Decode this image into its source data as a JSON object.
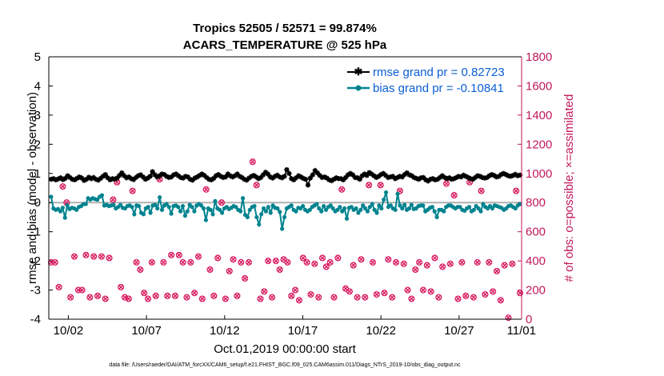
{
  "chart_data": {
    "type": "line",
    "title": [
      "Tropics 52505 / 52571 = 99.874%",
      "ACARS_TEMPERATURE @ 525 hPa"
    ],
    "xlabel": "Oct.01,2019 00:00:00 start",
    "ylabel_left": "rmse and bias (model - observation)",
    "ylabel_right": "# of obs: o=possible; ×=assimilated",
    "footnote": "data file: /Users/raeder/DAI/ATM_forcXX/CAM6_setup/f.e21.FHIST_BGC.f09_025.CAM6assim.011/Diags_NTrS_2019-10/obs_diag_output.nc",
    "xlim": [
      0.75,
      31.0
    ],
    "ylim_left": [
      -4,
      5
    ],
    "ylim_right": [
      0,
      1800
    ],
    "x_ticks": [
      {
        "v": 2,
        "label": "10/02"
      },
      {
        "v": 7,
        "label": "10/07"
      },
      {
        "v": 12,
        "label": "10/12"
      },
      {
        "v": 17,
        "label": "10/17"
      },
      {
        "v": 22,
        "label": "10/22"
      },
      {
        "v": 27,
        "label": "10/27"
      },
      {
        "v": 31,
        "label": "11/01"
      }
    ],
    "y_ticks_left": [
      "-4",
      "-3",
      "-2",
      "-1",
      "0",
      "1",
      "2",
      "3",
      "4",
      "5"
    ],
    "y_ticks_right": [
      "0",
      "200",
      "400",
      "600",
      "800",
      "1000",
      "1200",
      "1400",
      "1600",
      "1800"
    ],
    "legend": {
      "position": "top-right",
      "entries": [
        "rmse grand pr = 0.82723",
        "bias grand pr = -0.10841"
      ]
    },
    "colors": {
      "rmse": "#000000",
      "bias": "#00838f",
      "obs": "#d81b60",
      "zero_line": "#b0b0b0",
      "right_axis": "#c2185b"
    },
    "series": [
      {
        "name": "rmse",
        "axis": "left",
        "values": [
          0.8,
          0.82,
          0.78,
          0.81,
          0.85,
          0.79,
          0.83,
          0.92,
          0.86,
          0.8,
          0.78,
          0.83,
          0.88,
          0.84,
          0.76,
          0.8,
          0.87,
          0.82,
          0.86,
          0.8,
          0.77,
          0.83,
          0.9,
          0.96,
          0.85,
          0.78,
          0.82,
          0.8,
          0.84,
          0.93,
          1.02,
          0.92,
          0.85,
          0.88,
          0.82,
          0.79,
          0.86,
          0.92,
          0.95,
          0.88,
          0.8,
          0.84,
          0.9,
          1.06,
          0.95,
          0.88,
          0.92,
          0.98,
          0.96,
          0.9,
          0.86,
          0.88,
          0.95,
          0.98,
          0.92,
          0.86,
          0.84,
          0.9,
          0.88,
          0.8,
          0.77,
          0.84,
          0.88,
          0.93,
          0.98,
          0.93,
          0.86,
          0.8,
          0.78,
          0.83,
          0.92,
          0.96,
          0.9,
          0.86,
          0.88,
          0.98,
          0.92,
          0.88,
          0.92,
          0.98,
          0.9,
          0.86,
          0.8,
          0.77,
          0.84,
          0.9,
          0.93,
          0.88,
          0.82,
          0.86,
          0.95,
          1.04,
          0.98,
          0.88,
          0.84,
          0.9,
          0.94,
          0.88,
          0.85,
          0.9,
          1.13,
          1.0,
          0.82,
          0.78,
          0.85,
          0.92,
          0.88,
          0.83,
          0.8,
          0.6,
          0.84,
          0.95,
          1.1,
          1.02,
          0.93,
          0.86,
          0.88,
          0.84,
          0.78,
          0.75,
          0.8,
          0.85,
          0.82,
          0.82,
          0.78,
          0.86,
          0.95,
          1.0,
          0.95,
          0.86,
          0.85,
          0.8,
          0.92,
          0.98,
          0.93,
          1.03,
          0.98,
          0.92,
          0.86,
          0.9,
          0.96,
          1.0,
          0.93,
          0.86,
          0.88,
          0.9,
          0.82,
          0.86,
          0.9,
          0.88,
          0.96,
          1.02,
          0.95,
          0.92,
          0.86,
          0.83,
          0.8,
          0.85,
          0.86,
          0.78,
          0.74,
          0.8,
          0.82,
          0.78,
          0.8,
          0.86,
          0.92,
          0.86,
          0.82,
          0.85,
          0.8,
          0.82,
          0.86,
          0.9,
          0.88,
          0.94,
          0.9,
          0.86,
          0.82,
          0.8,
          0.86,
          0.92,
          0.9,
          0.86,
          0.84,
          0.86,
          0.92,
          0.96,
          0.93,
          0.88,
          0.9,
          0.96,
          1.0,
          0.96,
          0.92,
          0.9,
          0.93,
          0.97,
          0.92,
          0.94
        ]
      },
      {
        "name": "bias",
        "axis": "left",
        "values": [
          0.2,
          -0.2,
          -0.25,
          -0.22,
          -0.3,
          -0.18,
          -0.52,
          -0.1,
          -0.22,
          -0.18,
          -0.2,
          -0.25,
          -0.15,
          -0.12,
          -0.05,
          -0.05,
          0.15,
          0.1,
          0.15,
          0.12,
          0.1,
          0.2,
          0.25,
          -0.1,
          -0.08,
          -0.12,
          -0.1,
          -0.08,
          -0.2,
          -0.15,
          -0.08,
          -0.18,
          -0.2,
          -0.12,
          -0.1,
          -0.15,
          -0.4,
          -0.1,
          -0.12,
          -0.35,
          -0.4,
          -0.2,
          -0.15,
          -0.35,
          -0.1,
          -0.08,
          -0.2,
          0.18,
          -0.25,
          -0.1,
          -0.05,
          -0.15,
          -0.38,
          -0.12,
          -0.1,
          -0.15,
          -0.3,
          -0.12,
          -0.45,
          -0.3,
          -0.08,
          -0.15,
          -0.3,
          -0.1,
          -0.05,
          -0.1,
          -0.2,
          -0.6,
          -0.2,
          -0.25,
          -0.4,
          0.05,
          -0.2,
          -0.25,
          -0.35,
          -0.2,
          -0.15,
          -0.22,
          -0.18,
          -0.12,
          -0.15,
          -0.25,
          -0.3,
          0.15,
          -0.42,
          -0.5,
          -0.25,
          -0.15,
          -0.12,
          -0.5,
          -0.75,
          -0.4,
          -0.2,
          -0.3,
          -0.15,
          -0.35,
          -0.1,
          -0.18,
          -0.2,
          -0.32,
          -0.9,
          -0.5,
          -0.2,
          -0.15,
          -0.1,
          -0.25,
          -0.3,
          -0.18,
          -0.2,
          -0.12,
          -0.25,
          -0.3,
          -0.25,
          -0.15,
          -0.1,
          -0.05,
          -0.2,
          -0.3,
          -0.12,
          -0.25,
          -0.15,
          -0.1,
          -0.2,
          -0.3,
          -0.25,
          -0.15,
          -0.3,
          -0.2,
          -0.55,
          -0.18,
          -0.15,
          -0.25,
          -0.2,
          -0.35,
          -0.25,
          -0.1,
          -0.2,
          -0.3,
          -0.15,
          -0.05,
          -0.25,
          -0.35,
          -0.1,
          -0.2,
          0.1,
          0.35,
          -0.15,
          -0.1,
          -0.2,
          -0.25,
          0.3,
          -0.1,
          -0.2,
          -0.08,
          -0.25,
          -0.2,
          -0.08,
          -0.22,
          -0.2,
          -0.12,
          -0.1,
          -0.1,
          -0.3,
          -0.25,
          -0.18,
          -0.15,
          -0.3,
          -0.5,
          -0.25,
          -0.25,
          -0.3,
          -0.15,
          -0.1,
          -0.1,
          -0.15,
          -0.2,
          -0.15,
          -0.15,
          -0.25,
          -0.28,
          -0.2,
          -0.15,
          -0.3,
          -0.25,
          -0.12,
          -0.2,
          -0.3,
          -0.05,
          -0.15,
          -0.2,
          -0.12,
          -0.2,
          -0.1,
          -0.12,
          -0.15,
          -0.18,
          -0.25,
          -0.2,
          -0.12,
          -0.1,
          -0.15,
          -0.2,
          -0.1,
          -0.05
        ]
      },
      {
        "name": "obs_possible",
        "axis": "right",
        "values": [
          390,
          390,
          220,
          910,
          800,
          150,
          430,
          200,
          200,
          440,
          150,
          430,
          160,
          430,
          140,
          420,
          820,
          940,
          220,
          150,
          140,
          880,
          390,
          340,
          180,
          140,
          390,
          160,
          960,
          390,
          160,
          440,
          160,
          440,
          390,
          150,
          390,
          180,
          430,
          140,
          890,
          340,
          160,
          420,
          800,
          140,
          330,
          410,
          160,
          390,
          280,
          390,
          1080,
          920,
          140,
          190,
          400,
          150,
          400,
          340,
          410,
          390,
          160,
          200,
          130,
          420,
          390,
          170,
          380,
          150,
          420,
          360,
          390,
          150,
          420,
          890,
          210,
          190,
          370,
          150,
          410,
          150,
          920,
          390,
          170,
          920,
          180,
          410,
          150,
          390,
          880,
          380,
          200,
          140,
          340,
          390,
          200,
          370,
          190,
          420,
          150,
          360,
          930,
          380,
          850,
          140,
          390,
          160,
          940,
          150,
          390,
          880,
          170,
          390,
          190,
          330,
          130,
          370,
          10,
          380,
          880,
          180
        ]
      },
      {
        "name": "obs_assimilated",
        "axis": "right",
        "values": [
          390,
          390,
          220,
          910,
          800,
          150,
          430,
          200,
          200,
          440,
          150,
          430,
          160,
          430,
          140,
          420,
          820,
          940,
          220,
          150,
          140,
          880,
          390,
          340,
          180,
          140,
          390,
          160,
          960,
          390,
          160,
          440,
          160,
          440,
          390,
          150,
          390,
          180,
          430,
          140,
          890,
          340,
          160,
          420,
          800,
          140,
          330,
          410,
          160,
          390,
          280,
          390,
          1080,
          920,
          140,
          190,
          400,
          150,
          400,
          340,
          410,
          390,
          160,
          200,
          130,
          420,
          390,
          170,
          380,
          150,
          420,
          360,
          390,
          150,
          420,
          890,
          210,
          190,
          370,
          150,
          410,
          150,
          920,
          390,
          170,
          920,
          180,
          410,
          150,
          390,
          880,
          380,
          200,
          140,
          340,
          390,
          200,
          370,
          190,
          420,
          150,
          360,
          930,
          380,
          850,
          140,
          390,
          160,
          940,
          150,
          390,
          880,
          170,
          390,
          190,
          330,
          130,
          370,
          10,
          380,
          880,
          180
        ]
      }
    ]
  }
}
